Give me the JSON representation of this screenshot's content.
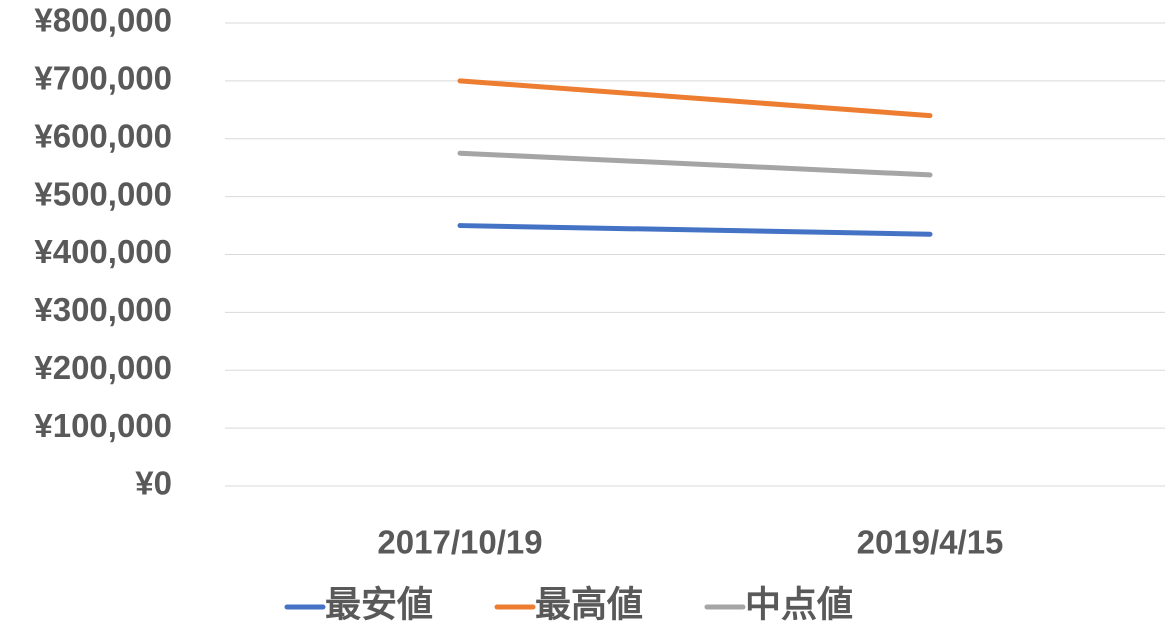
{
  "chart_data": {
    "type": "line",
    "categories": [
      "2017/10/19",
      "2019/4/15"
    ],
    "series": [
      {
        "name": "最安値",
        "color": "#4472c4",
        "values": [
          450000,
          435000
        ]
      },
      {
        "name": "最高値",
        "color": "#ed7d31",
        "values": [
          700000,
          640000
        ]
      },
      {
        "name": "中点値",
        "color": "#a5a5a5",
        "values": [
          575000,
          537500
        ]
      }
    ],
    "ylim": [
      0,
      800000
    ],
    "yticks": [
      {
        "value": 0,
        "label": "¥0"
      },
      {
        "value": 100000,
        "label": "¥100,000"
      },
      {
        "value": 200000,
        "label": "¥200,000"
      },
      {
        "value": 300000,
        "label": "¥300,000"
      },
      {
        "value": 400000,
        "label": "¥400,000"
      },
      {
        "value": 500000,
        "label": "¥500,000"
      },
      {
        "value": 600000,
        "label": "¥600,000"
      },
      {
        "value": 700000,
        "label": "¥700,000"
      },
      {
        "value": 800000,
        "label": "¥800,000"
      }
    ],
    "grid": true,
    "legend": "bottom"
  }
}
